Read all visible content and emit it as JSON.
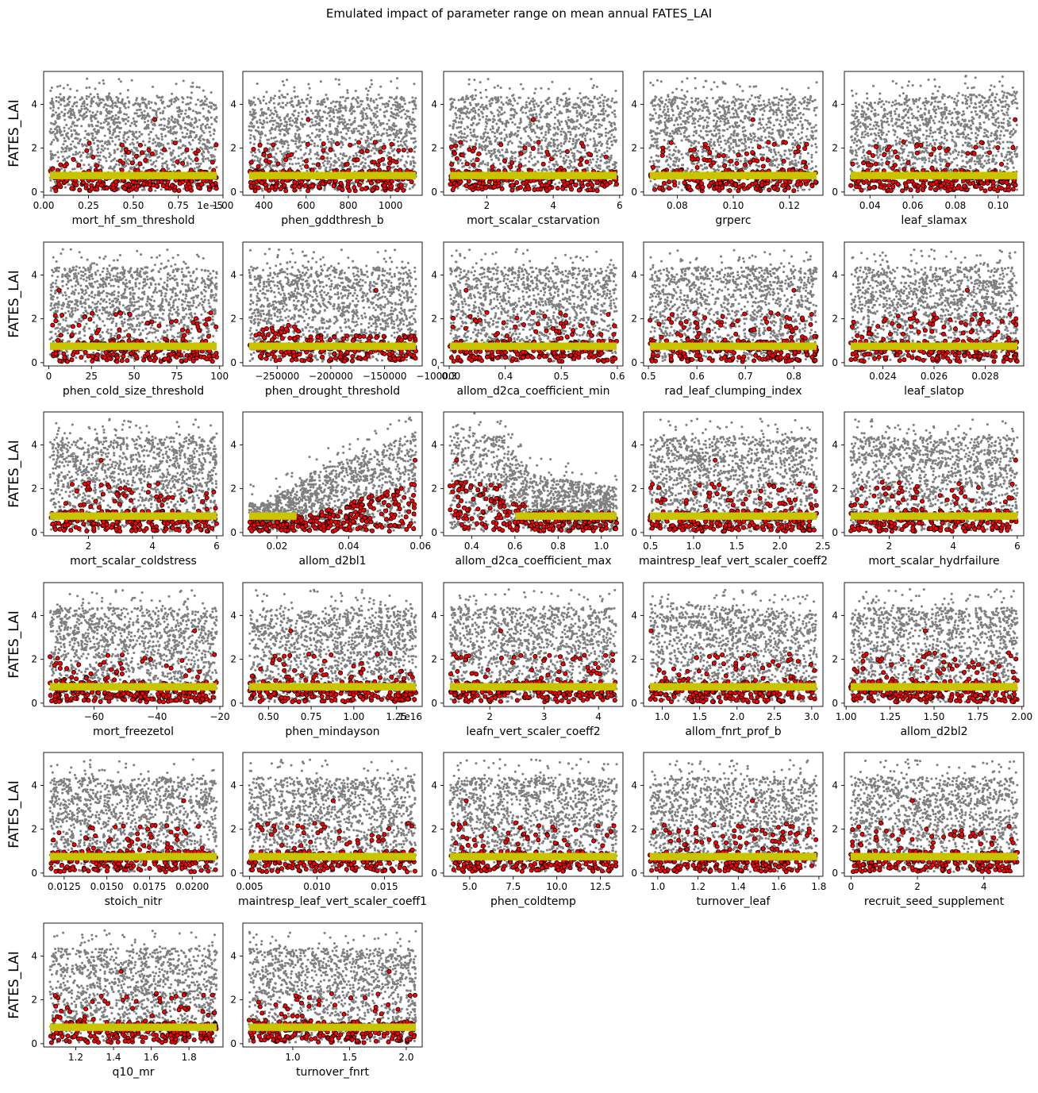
{
  "figure": {
    "title": "Emulated impact of parameter range on mean annual FATES_LAI",
    "ylabel": "FATES_LAI"
  },
  "colors": {
    "background_points": "#7f7f7f",
    "highlight_points": "#ff0000",
    "highlight_edge": "#000000",
    "band": "#c8c400"
  },
  "chart_data": [
    {
      "type": "scatter",
      "xlabel": "mort_hf_sm_threshold",
      "xlim": [
        0,
        1.0
      ],
      "xticks": [
        0.0,
        0.25,
        0.5,
        0.75,
        1.0
      ],
      "xtick_labels": [
        "0.00",
        "0.25",
        "0.50",
        "0.75",
        "1.00"
      ],
      "offset_text": "1e−5",
      "ylim": [
        0,
        5.5
      ],
      "yticks": [
        0,
        2,
        4
      ],
      "pattern": "flat",
      "outlier_x": 0.62,
      "ylabel": "FATES_LAI"
    },
    {
      "type": "scatter",
      "xlabel": "phen_gddthresh_b",
      "xlim": [
        300,
        1150
      ],
      "xticks": [
        400,
        600,
        800,
        1000
      ],
      "xtick_labels": [
        "400",
        "600",
        "800",
        "1000"
      ],
      "ylim": [
        0,
        5.5
      ],
      "yticks": [
        0,
        2,
        4
      ],
      "pattern": "flat",
      "outlier_x": 610
    },
    {
      "type": "scatter",
      "xlabel": "mort_scalar_cstarvation",
      "xlim": [
        0.7,
        6.1
      ],
      "xticks": [
        2,
        4,
        6
      ],
      "xtick_labels": [
        "2",
        "4",
        "6"
      ],
      "ylim": [
        0,
        5.5
      ],
      "yticks": [
        0,
        2,
        4
      ],
      "pattern": "flat",
      "outlier_x": 3.4
    },
    {
      "type": "scatter",
      "xlabel": "grperc",
      "xlim": [
        0.068,
        0.132
      ],
      "xticks": [
        0.08,
        0.1,
        0.12
      ],
      "xtick_labels": [
        "0.08",
        "0.10",
        "0.12"
      ],
      "ylim": [
        0,
        5.5
      ],
      "yticks": [
        0,
        2,
        4
      ],
      "pattern": "flat",
      "outlier_x": 0.107
    },
    {
      "type": "scatter",
      "xlabel": "leaf_slamax",
      "xlim": [
        0.028,
        0.112
      ],
      "xticks": [
        0.04,
        0.06,
        0.08,
        0.1
      ],
      "xtick_labels": [
        "0.04",
        "0.06",
        "0.08",
        "0.10"
      ],
      "ylim": [
        0,
        5.5
      ],
      "yticks": [
        0,
        2,
        4
      ],
      "pattern": "rise_small",
      "outlier_x": 0.108
    },
    {
      "type": "scatter",
      "xlabel": "phen_cold_size_threshold",
      "xlim": [
        -3,
        102
      ],
      "xticks": [
        0,
        25,
        50,
        75,
        100
      ],
      "xtick_labels": [
        "0",
        "25",
        "50",
        "75",
        "100"
      ],
      "ylim": [
        0,
        5.5
      ],
      "yticks": [
        0,
        2,
        4
      ],
      "pattern": "flat",
      "outlier_x": 6,
      "ylabel": "FATES_LAI"
    },
    {
      "type": "scatter",
      "xlabel": "phen_drought_threshold",
      "xlim": [
        -282000,
        -115000
      ],
      "xticks": [
        -250000,
        -200000,
        -150000,
        -100000
      ],
      "xtick_labels": [
        "−250000",
        "−200000",
        "−150000",
        "−100000"
      ],
      "ylim": [
        0,
        5.5
      ],
      "yticks": [
        0,
        2,
        4
      ],
      "pattern": "drop_left",
      "outlier_x": -158000
    },
    {
      "type": "scatter",
      "xlabel": "allom_d2ca_coefficient_min",
      "xlim": [
        0.29,
        0.61
      ],
      "xticks": [
        0.3,
        0.4,
        0.5,
        0.6
      ],
      "xtick_labels": [
        "0.3",
        "0.4",
        "0.5",
        "0.6"
      ],
      "ylim": [
        0,
        5.5
      ],
      "yticks": [
        0,
        2,
        4
      ],
      "pattern": "flat",
      "outlier_x": 0.33
    },
    {
      "type": "scatter",
      "xlabel": "rad_leaf_clumping_index",
      "xlim": [
        0.49,
        0.86
      ],
      "xticks": [
        0.5,
        0.6,
        0.7,
        0.8
      ],
      "xtick_labels": [
        "0.5",
        "0.6",
        "0.7",
        "0.8"
      ],
      "ylim": [
        0,
        5.5
      ],
      "yticks": [
        0,
        2,
        4
      ],
      "pattern": "flat",
      "outlier_x": 0.8
    },
    {
      "type": "scatter",
      "xlabel": "leaf_slatop",
      "xlim": [
        0.0225,
        0.0295
      ],
      "xticks": [
        0.024,
        0.026,
        0.028
      ],
      "xtick_labels": [
        "0.024",
        "0.026",
        "0.028"
      ],
      "ylim": [
        0,
        5.5
      ],
      "yticks": [
        0,
        2,
        4
      ],
      "pattern": "flat",
      "outlier_x": 0.0273
    },
    {
      "type": "scatter",
      "xlabel": "mort_scalar_coldstress",
      "xlim": [
        0.6,
        6.2
      ],
      "xticks": [
        2,
        4,
        6
      ],
      "xtick_labels": [
        "2",
        "4",
        "6"
      ],
      "ylim": [
        0,
        5.5
      ],
      "yticks": [
        0,
        2,
        4
      ],
      "pattern": "flat",
      "outlier_x": 2.4,
      "ylabel": "FATES_LAI"
    },
    {
      "type": "scatter",
      "xlabel": "allom_d2bl1",
      "xlim": [
        0.0105,
        0.0605
      ],
      "xticks": [
        0.02,
        0.04,
        0.06
      ],
      "xtick_labels": [
        "0.02",
        "0.04",
        "0.06"
      ],
      "ylim": [
        0,
        5.5
      ],
      "yticks": [
        0,
        2,
        4
      ],
      "pattern": "rise_strong",
      "outlier_x": 0.0585
    },
    {
      "type": "scatter",
      "xlabel": "allom_d2ca_coefficient_max",
      "xlim": [
        0.27,
        1.1
      ],
      "xticks": [
        0.4,
        0.6,
        0.8,
        1.0
      ],
      "xtick_labels": [
        "0.4",
        "0.6",
        "0.8",
        "1.0"
      ],
      "ylim": [
        0,
        5.5
      ],
      "yticks": [
        0,
        2,
        4
      ],
      "pattern": "fall_strong",
      "outlier_x": 0.33
    },
    {
      "type": "scatter",
      "xlabel": "maintresp_leaf_vert_scaler_coeff2",
      "xlim": [
        0.42,
        2.5
      ],
      "xticks": [
        0.5,
        1.0,
        1.5,
        2.0,
        2.5
      ],
      "xtick_labels": [
        "0.5",
        "1.0",
        "1.5",
        "2.0",
        "2.5"
      ],
      "ylim": [
        0,
        5.5
      ],
      "yticks": [
        0,
        2,
        4
      ],
      "pattern": "flat",
      "outlier_x": 1.25
    },
    {
      "type": "scatter",
      "xlabel": "mort_scalar_hydrfailure",
      "xlim": [
        0.6,
        6.2
      ],
      "xticks": [
        2,
        4,
        6
      ],
      "xtick_labels": [
        "2",
        "4",
        "6"
      ],
      "ylim": [
        0,
        5.5
      ],
      "yticks": [
        0,
        2,
        4
      ],
      "pattern": "flat",
      "outlier_x": 5.95
    },
    {
      "type": "scatter",
      "xlabel": "mort_freezetol",
      "xlim": [
        -76,
        -19
      ],
      "xticks": [
        -60,
        -40,
        -20
      ],
      "xtick_labels": [
        "−60",
        "−40",
        "−20"
      ],
      "ylim": [
        0,
        5.5
      ],
      "yticks": [
        0,
        2,
        4
      ],
      "pattern": "flat",
      "outlier_x": -28,
      "ylabel": "FATES_LAI"
    },
    {
      "type": "scatter",
      "xlabel": "phen_mindayson",
      "xlim": [
        0.35,
        1.4
      ],
      "xticks": [
        0.5,
        0.75,
        1.0,
        1.25
      ],
      "xtick_labels": [
        "0.50",
        "0.75",
        "1.00",
        "1.25"
      ],
      "offset_text": "1e16",
      "ylim": [
        0,
        5.5
      ],
      "yticks": [
        0,
        2,
        4
      ],
      "pattern": "flat",
      "outlier_x": 0.63
    },
    {
      "type": "scatter",
      "xlabel": "leafn_vert_scaler_coeff2",
      "xlim": [
        1.15,
        4.45
      ],
      "xticks": [
        2,
        3,
        4
      ],
      "xtick_labels": [
        "2",
        "3",
        "4"
      ],
      "ylim": [
        0,
        5.5
      ],
      "yticks": [
        0,
        2,
        4
      ],
      "pattern": "flat",
      "outlier_x": 2.2
    },
    {
      "type": "scatter",
      "xlabel": "allom_fnrt_prof_b",
      "xlim": [
        0.75,
        3.15
      ],
      "xticks": [
        1.0,
        1.5,
        2.0,
        2.5,
        3.0
      ],
      "xtick_labels": [
        "1.0",
        "1.5",
        "2.0",
        "2.5",
        "3.0"
      ],
      "ylim": [
        0,
        5.5
      ],
      "yticks": [
        0,
        2,
        4
      ],
      "pattern": "fall_small",
      "outlier_x": 0.85
    },
    {
      "type": "scatter",
      "xlabel": "allom_d2bl2",
      "xlim": [
        0.99,
        2.01
      ],
      "xticks": [
        1.0,
        1.25,
        1.5,
        1.75,
        2.0
      ],
      "xtick_labels": [
        "1.00",
        "1.25",
        "1.50",
        "1.75",
        "2.00"
      ],
      "ylim": [
        0,
        5.5
      ],
      "yticks": [
        0,
        2,
        4
      ],
      "pattern": "flat",
      "outlier_x": 1.45
    },
    {
      "type": "scatter",
      "xlabel": "stoich_nitr",
      "xlim": [
        0.0113,
        0.0218
      ],
      "xticks": [
        0.0125,
        0.015,
        0.0175,
        0.02
      ],
      "xtick_labels": [
        "0.0125",
        "0.0150",
        "0.0175",
        "0.0200"
      ],
      "ylim": [
        0,
        5.5
      ],
      "yticks": [
        0,
        2,
        4
      ],
      "pattern": "flat",
      "outlier_x": 0.0195,
      "ylabel": "FATES_LAI"
    },
    {
      "type": "scatter",
      "xlabel": "maintresp_leaf_vert_scaler_coeff1",
      "xlim": [
        0.0045,
        0.0178
      ],
      "xticks": [
        0.005,
        0.01,
        0.015
      ],
      "xtick_labels": [
        "0.005",
        "0.010",
        "0.015"
      ],
      "ylim": [
        0,
        5.5
      ],
      "yticks": [
        0,
        2,
        4
      ],
      "pattern": "flat",
      "outlier_x": 0.0112
    },
    {
      "type": "scatter",
      "xlabel": "phen_coldtemp",
      "xlim": [
        3.5,
        13.8
      ],
      "xticks": [
        5.0,
        7.5,
        10.0,
        12.5
      ],
      "xtick_labels": [
        "5.0",
        "7.5",
        "10.0",
        "12.5"
      ],
      "ylim": [
        0,
        5.5
      ],
      "yticks": [
        0,
        2,
        4
      ],
      "pattern": "flat",
      "outlier_x": 4.8
    },
    {
      "type": "scatter",
      "xlabel": "turnover_leaf",
      "xlim": [
        0.93,
        1.82
      ],
      "xticks": [
        1.0,
        1.2,
        1.4,
        1.6,
        1.8
      ],
      "xtick_labels": [
        "1.0",
        "1.2",
        "1.4",
        "1.6",
        "1.8"
      ],
      "ylim": [
        0,
        5.5
      ],
      "yticks": [
        0,
        2,
        4
      ],
      "pattern": "flat",
      "outlier_x": 1.47
    },
    {
      "type": "scatter",
      "xlabel": "recruit_seed_supplement",
      "xlim": [
        -0.2,
        5.2
      ],
      "xticks": [
        0,
        2,
        4
      ],
      "xtick_labels": [
        "0",
        "2",
        "4"
      ],
      "ylim": [
        0,
        5.5
      ],
      "yticks": [
        0,
        2,
        4
      ],
      "pattern": "flat",
      "outlier_x": 1.85
    },
    {
      "type": "scatter",
      "xlabel": "q10_mr",
      "xlim": [
        1.03,
        1.98
      ],
      "xticks": [
        1.2,
        1.4,
        1.6,
        1.8
      ],
      "xtick_labels": [
        "1.2",
        "1.4",
        "1.6",
        "1.8"
      ],
      "ylim": [
        0,
        5.5
      ],
      "yticks": [
        0,
        2,
        4
      ],
      "pattern": "flat",
      "outlier_x": 1.44,
      "ylabel": "FATES_LAI"
    },
    {
      "type": "scatter",
      "xlabel": "turnover_fnrt",
      "xlim": [
        0.56,
        2.14
      ],
      "xticks": [
        1.0,
        1.5,
        2.0
      ],
      "xtick_labels": [
        "1.0",
        "1.5",
        "2.0"
      ],
      "ylim": [
        0,
        5.5
      ],
      "yticks": [
        0,
        2,
        4
      ],
      "pattern": "flat",
      "outlier_x": 1.85
    }
  ]
}
